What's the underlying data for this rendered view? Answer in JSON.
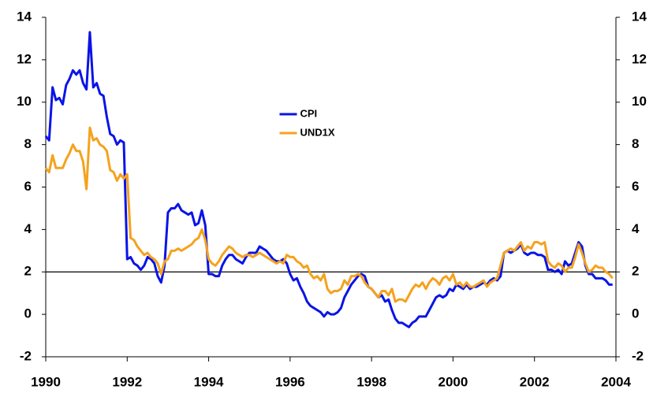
{
  "chart_data": {
    "type": "line",
    "x": [
      1990,
      1990.083,
      1990.167,
      1990.25,
      1990.333,
      1990.417,
      1990.5,
      1990.583,
      1990.667,
      1990.75,
      1990.833,
      1990.917,
      1991,
      1991.083,
      1991.167,
      1991.25,
      1991.333,
      1991.417,
      1991.5,
      1991.583,
      1991.667,
      1991.75,
      1991.833,
      1991.917,
      1992,
      1992.083,
      1992.167,
      1992.25,
      1992.333,
      1992.417,
      1992.5,
      1992.583,
      1992.667,
      1992.75,
      1992.833,
      1992.917,
      1993,
      1993.083,
      1993.167,
      1993.25,
      1993.333,
      1993.417,
      1993.5,
      1993.583,
      1993.667,
      1993.75,
      1993.833,
      1993.917,
      1994,
      1994.083,
      1994.167,
      1994.25,
      1994.333,
      1994.417,
      1994.5,
      1994.583,
      1994.667,
      1994.75,
      1994.833,
      1994.917,
      1995,
      1995.083,
      1995.167,
      1995.25,
      1995.333,
      1995.417,
      1995.5,
      1995.583,
      1995.667,
      1995.75,
      1995.833,
      1995.917,
      1996,
      1996.083,
      1996.167,
      1996.25,
      1996.333,
      1996.417,
      1996.5,
      1996.583,
      1996.667,
      1996.75,
      1996.833,
      1996.917,
      1997,
      1997.083,
      1997.167,
      1997.25,
      1997.333,
      1997.417,
      1997.5,
      1997.583,
      1997.667,
      1997.75,
      1997.833,
      1997.917,
      1998,
      1998.083,
      1998.167,
      1998.25,
      1998.333,
      1998.417,
      1998.5,
      1998.583,
      1998.667,
      1998.75,
      1998.833,
      1998.917,
      1999,
      1999.083,
      1999.167,
      1999.25,
      1999.333,
      1999.417,
      1999.5,
      1999.583,
      1999.667,
      1999.75,
      1999.833,
      1999.917,
      2000,
      2000.083,
      2000.167,
      2000.25,
      2000.333,
      2000.417,
      2000.5,
      2000.583,
      2000.667,
      2000.75,
      2000.833,
      2000.917,
      2001,
      2001.083,
      2001.167,
      2001.25,
      2001.333,
      2001.417,
      2001.5,
      2001.583,
      2001.667,
      2001.75,
      2001.833,
      2001.917,
      2002,
      2002.083,
      2002.167,
      2002.25,
      2002.333,
      2002.417,
      2002.5,
      2002.583,
      2002.667,
      2002.75,
      2002.833,
      2002.917,
      2003,
      2003.083,
      2003.167,
      2003.25,
      2003.333,
      2003.417,
      2003.5,
      2003.583,
      2003.667,
      2003.75,
      2003.833,
      2003.917
    ],
    "series": [
      {
        "name": "CPI",
        "color": "#0a14e6",
        "values": [
          8.4,
          8.2,
          10.7,
          10.1,
          10.2,
          9.9,
          10.8,
          11.1,
          11.5,
          11.3,
          11.5,
          10.9,
          10.6,
          13.3,
          10.7,
          10.9,
          10.4,
          10.3,
          9.3,
          8.5,
          8.4,
          8.0,
          8.2,
          8.1,
          2.6,
          2.7,
          2.4,
          2.3,
          2.1,
          2.3,
          2.7,
          2.6,
          2.4,
          1.8,
          1.5,
          2.3,
          4.8,
          5.0,
          5.0,
          5.2,
          4.9,
          4.8,
          4.7,
          4.8,
          4.2,
          4.3,
          4.9,
          4.2,
          1.9,
          1.9,
          1.8,
          1.8,
          2.3,
          2.6,
          2.8,
          2.8,
          2.6,
          2.5,
          2.4,
          2.7,
          2.9,
          2.9,
          2.9,
          3.2,
          3.1,
          3.0,
          2.8,
          2.6,
          2.5,
          2.5,
          2.6,
          2.4,
          1.9,
          1.6,
          1.7,
          1.3,
          1.0,
          0.6,
          0.4,
          0.3,
          0.2,
          0.1,
          -0.1,
          0.1,
          0.0,
          0.0,
          0.1,
          0.3,
          0.8,
          1.1,
          1.4,
          1.6,
          1.8,
          1.9,
          1.8,
          1.3,
          1.2,
          1.0,
          0.8,
          0.9,
          0.6,
          0.7,
          0.2,
          -0.2,
          -0.4,
          -0.4,
          -0.5,
          -0.6,
          -0.4,
          -0.3,
          -0.1,
          -0.1,
          -0.1,
          0.2,
          0.5,
          0.8,
          0.9,
          0.8,
          0.9,
          1.2,
          1.1,
          1.4,
          1.3,
          1.2,
          1.4,
          1.2,
          1.3,
          1.3,
          1.4,
          1.5,
          1.4,
          1.6,
          1.7,
          1.6,
          1.8,
          2.9,
          3.0,
          2.9,
          3.0,
          3.1,
          3.3,
          2.9,
          2.8,
          2.9,
          2.9,
          2.8,
          2.8,
          2.7,
          2.1,
          2.1,
          2.0,
          2.1,
          1.9,
          2.5,
          2.3,
          2.4,
          2.9,
          3.4,
          3.2,
          2.3,
          1.9,
          1.9,
          1.7,
          1.7,
          1.7,
          1.6,
          1.4,
          1.4
        ]
      },
      {
        "name": "UND1X",
        "color": "#f5a21e",
        "values": [
          6.9,
          6.7,
          7.5,
          6.9,
          6.9,
          6.9,
          7.3,
          7.6,
          8.0,
          7.7,
          7.7,
          7.2,
          5.9,
          8.8,
          8.2,
          8.3,
          8.0,
          7.9,
          7.7,
          6.8,
          6.7,
          6.3,
          6.6,
          6.4,
          6.6,
          3.6,
          3.5,
          3.2,
          3.0,
          2.8,
          2.9,
          2.7,
          2.6,
          2.4,
          1.9,
          2.5,
          2.6,
          3.0,
          3.0,
          3.1,
          3.0,
          3.1,
          3.2,
          3.3,
          3.5,
          3.6,
          4.0,
          3.5,
          2.6,
          2.4,
          2.3,
          2.5,
          2.8,
          3.0,
          3.2,
          3.1,
          2.9,
          2.8,
          2.7,
          2.8,
          2.8,
          2.7,
          2.8,
          2.9,
          2.8,
          2.7,
          2.6,
          2.5,
          2.4,
          2.5,
          2.4,
          2.8,
          2.7,
          2.7,
          2.5,
          2.4,
          2.2,
          2.3,
          1.9,
          1.7,
          1.8,
          1.6,
          1.9,
          1.2,
          1.0,
          1.1,
          1.1,
          1.2,
          1.6,
          1.4,
          1.8,
          1.8,
          1.9,
          1.8,
          1.5,
          1.3,
          1.2,
          1.0,
          0.8,
          1.1,
          1.1,
          0.9,
          1.2,
          0.6,
          0.7,
          0.7,
          0.6,
          0.9,
          1.2,
          1.4,
          1.3,
          1.5,
          1.2,
          1.5,
          1.7,
          1.6,
          1.4,
          1.7,
          1.8,
          1.6,
          1.9,
          1.4,
          1.5,
          1.3,
          1.5,
          1.3,
          1.3,
          1.4,
          1.5,
          1.6,
          1.3,
          1.5,
          1.6,
          1.7,
          2.3,
          2.9,
          3.0,
          3.1,
          3.0,
          3.2,
          3.4,
          3.0,
          3.2,
          3.1,
          3.4,
          3.4,
          3.3,
          3.4,
          2.5,
          2.3,
          2.2,
          2.4,
          2.3,
          2.0,
          2.2,
          2.2,
          2.7,
          3.3,
          2.9,
          2.4,
          2.0,
          2.1,
          2.3,
          2.2,
          2.2,
          2.0,
          1.9,
          1.7
        ]
      }
    ],
    "xlim": [
      1990,
      2004
    ],
    "xticks": [
      1990,
      1992,
      1994,
      1996,
      1998,
      2000,
      2002,
      2004
    ],
    "ylim": [
      -2,
      14
    ],
    "yticks": [
      -2,
      0,
      2,
      4,
      6,
      8,
      10,
      12,
      14
    ],
    "y2lim": [
      -2,
      14
    ],
    "y2ticks": [
      -2,
      0,
      2,
      4,
      6,
      8,
      10,
      12,
      14
    ],
    "hline": 2,
    "legend": "upper center",
    "grid": false
  }
}
